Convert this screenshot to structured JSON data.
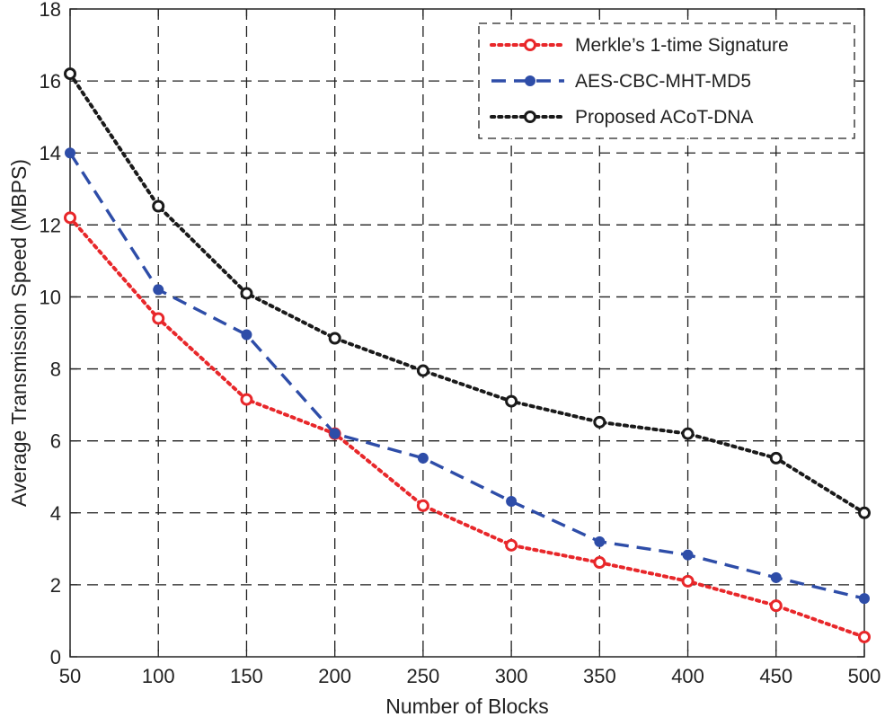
{
  "chart_data": {
    "type": "line",
    "title": "",
    "xlabel": "Number of Blocks",
    "ylabel": "Average Transmission Speed (MBPS)",
    "x": [
      50,
      100,
      150,
      200,
      250,
      300,
      350,
      400,
      450,
      500
    ],
    "xlim": [
      50,
      500
    ],
    "ylim": [
      0,
      18
    ],
    "xticks": [
      50,
      100,
      150,
      200,
      250,
      300,
      350,
      400,
      450,
      500
    ],
    "yticks": [
      0,
      2,
      4,
      6,
      8,
      10,
      12,
      14,
      16,
      18
    ],
    "grid": true,
    "legend_position": "top-right",
    "series": [
      {
        "name": "Merkle’s 1-time Signature",
        "color": "#e8272a",
        "line_style": "dotted",
        "marker": "open-circle",
        "values": [
          12.2,
          9.4,
          7.15,
          6.2,
          4.2,
          3.1,
          2.62,
          2.1,
          1.42,
          0.55
        ]
      },
      {
        "name": "AES-CBC-MHT-MD5",
        "color": "#2e4da8",
        "line_style": "dashed",
        "marker": "filled-circle",
        "values": [
          14.0,
          10.2,
          8.95,
          6.2,
          5.52,
          4.32,
          3.2,
          2.83,
          2.2,
          1.62
        ]
      },
      {
        "name": "Proposed ACoT-DNA",
        "color": "#1a1a1a",
        "line_style": "dotted",
        "marker": "open-circle",
        "values": [
          16.2,
          12.52,
          10.1,
          8.85,
          7.95,
          7.1,
          6.52,
          6.2,
          5.52,
          4.0
        ]
      }
    ]
  }
}
